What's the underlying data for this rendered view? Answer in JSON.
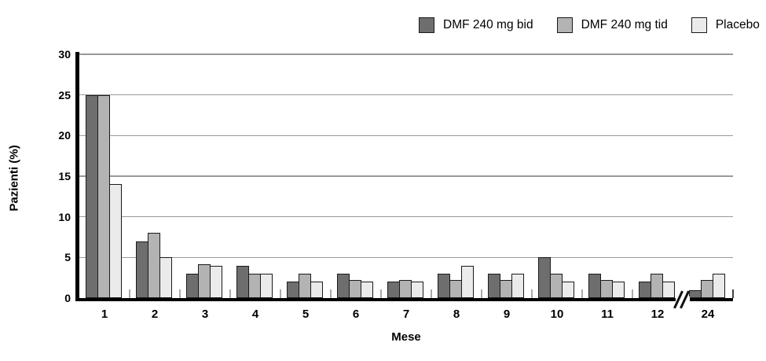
{
  "figure_background": "#ffffff",
  "legend": {
    "position": "top-right",
    "items": [
      {
        "label": "DMF 240 mg bid",
        "color": "#6e6e6e"
      },
      {
        "label": "DMF 240 mg tid",
        "color": "#b3b3b3"
      },
      {
        "label": "Placebo",
        "color": "#ebebeb"
      }
    ]
  },
  "chart_data": {
    "type": "bar",
    "title": "",
    "xlabel": "Mese",
    "ylabel": "Pazienti (%)",
    "categories": [
      "1",
      "2",
      "3",
      "4",
      "5",
      "6",
      "7",
      "8",
      "9",
      "10",
      "11",
      "12",
      "24"
    ],
    "x_axis_break_after": "12",
    "ylim": [
      0,
      30
    ],
    "yticks": [
      0,
      5,
      10,
      15,
      20,
      25,
      30
    ],
    "grid": "horizontal",
    "gridline_color": "#999999",
    "axis_color": "#000000",
    "bar_border_color": "#1a1a1a",
    "legend_position": "top-right",
    "series": [
      {
        "name": "DMF 240 mg bid",
        "color": "#6e6e6e",
        "values": [
          25,
          7,
          3,
          4,
          2,
          3,
          2,
          3,
          3,
          5,
          3,
          2,
          1
        ]
      },
      {
        "name": "DMF 240 mg tid",
        "color": "#b3b3b3",
        "values": [
          25,
          8,
          4.2,
          3,
          3,
          2.2,
          2.2,
          2.2,
          2.2,
          3,
          2.2,
          3,
          2.2
        ]
      },
      {
        "name": "Placebo",
        "color": "#ebebeb",
        "values": [
          14,
          5,
          4,
          3,
          2,
          2,
          2,
          4,
          3,
          2,
          2,
          2,
          3
        ]
      }
    ]
  }
}
